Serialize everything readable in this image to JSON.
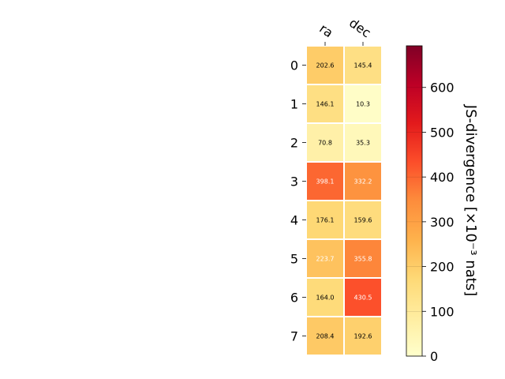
{
  "chart_data": {
    "type": "heatmap",
    "title": "",
    "columns": [
      "ra",
      "dec"
    ],
    "rows": [
      "0",
      "1",
      "2",
      "3",
      "4",
      "5",
      "6",
      "7"
    ],
    "values": [
      [
        202.6,
        145.4
      ],
      [
        146.1,
        10.3
      ],
      [
        70.8,
        35.3
      ],
      [
        398.1,
        332.2
      ],
      [
        176.1,
        159.6
      ],
      [
        223.7,
        355.8
      ],
      [
        164.0,
        430.5
      ],
      [
        208.4,
        192.6
      ]
    ],
    "value_labels": [
      [
        "202.6",
        "145.4"
      ],
      [
        "146.1",
        "10.3"
      ],
      [
        "70.8",
        "35.3"
      ],
      [
        "398.1",
        "332.2"
      ],
      [
        "176.1",
        "159.6"
      ],
      [
        "223.7",
        "355.8"
      ],
      [
        "164.0",
        "430.5"
      ],
      [
        "208.4",
        "192.6"
      ]
    ],
    "colormap": "YlOrRd",
    "colorbar": {
      "label": "JS-divergence [×10⁻³ nats]",
      "range": [
        0,
        693
      ],
      "ticks": [
        0,
        100,
        200,
        300,
        400,
        500,
        600
      ],
      "tick_labels": [
        "0",
        "100",
        "200",
        "300",
        "400",
        "500",
        "600"
      ]
    },
    "label_colors": {
      "dark_text": "#000000",
      "light_text": "#ffffff"
    },
    "grid": false
  }
}
